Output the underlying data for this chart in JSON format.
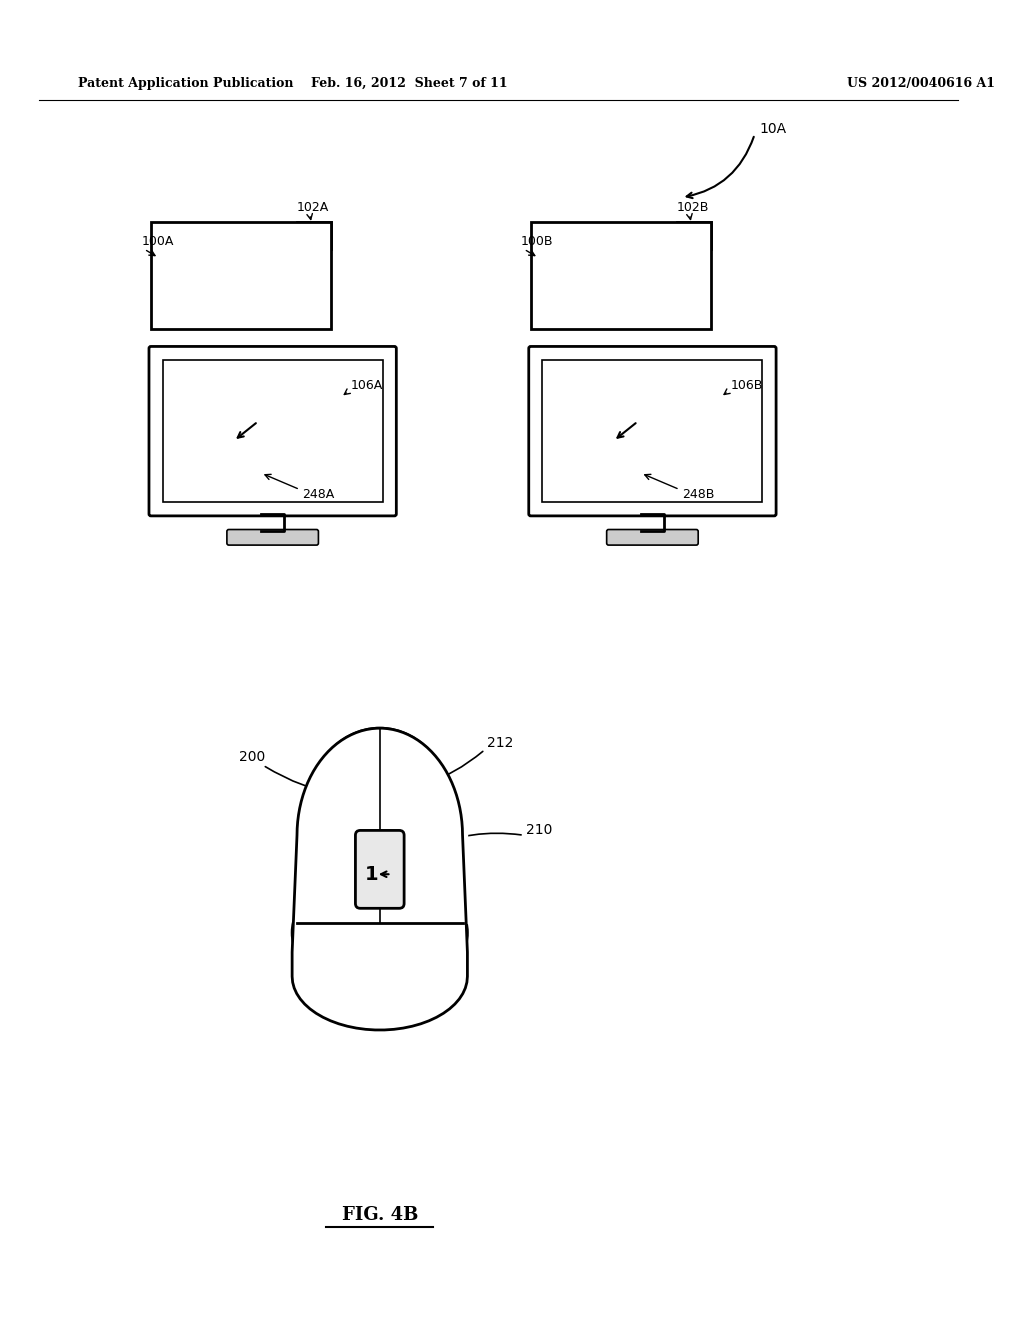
{
  "bg_color": "#ffffff",
  "header_left": "Patent Application Publication",
  "header_mid": "Feb. 16, 2012  Sheet 7 of 11",
  "header_right": "US 2012/0040616 A1",
  "fig_label": "FIG. 4B",
  "label_10A": "10A",
  "label_100A": "100A",
  "label_102A": "102A",
  "label_106A": "106A",
  "label_248A": "248A",
  "label_100B": "100B",
  "label_102B": "102B",
  "label_106B": "106B",
  "label_248B": "248B",
  "label_200": "200",
  "label_212": "212",
  "label_210": "210"
}
